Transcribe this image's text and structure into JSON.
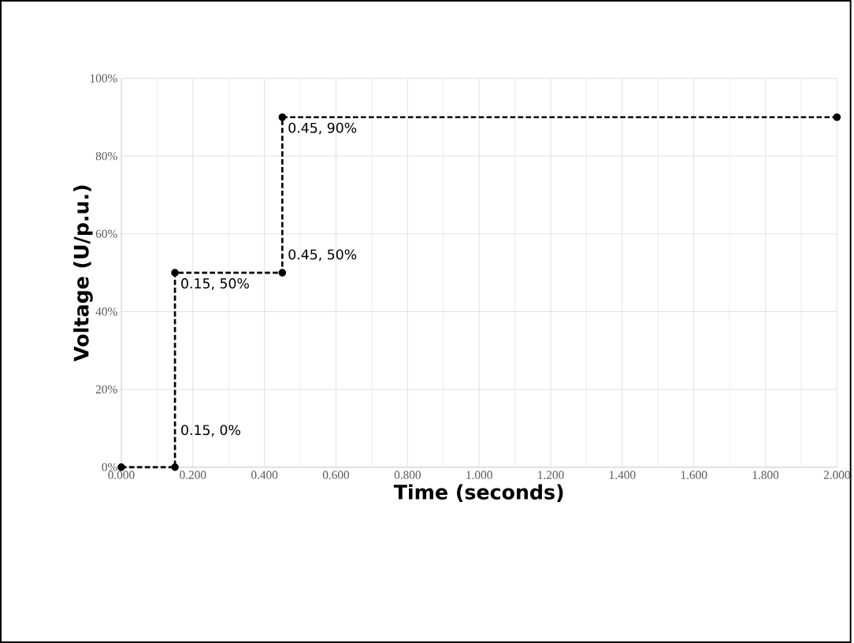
{
  "chart_data": {
    "type": "line",
    "xlabel": "Time (seconds)",
    "ylabel": "Voltage (U/p.u.)",
    "x": [
      0,
      0.15,
      0.15,
      0.45,
      0.45,
      2.0
    ],
    "series": [
      {
        "color": "#000000",
        "values": [
          0,
          0,
          50,
          50,
          90,
          90
        ]
      }
    ],
    "xlim": [
      0,
      2.0
    ],
    "ylim": [
      0,
      100
    ],
    "xticks": [
      {
        "value": 0,
        "label": "0.000"
      },
      {
        "value": 0.2,
        "label": "0.200"
      },
      {
        "value": 0.4,
        "label": "0.400"
      },
      {
        "value": 0.6,
        "label": "0.600"
      },
      {
        "value": 0.8,
        "label": "0.800"
      },
      {
        "value": 1.0,
        "label": "1.000"
      },
      {
        "value": 1.2,
        "label": "1.200"
      },
      {
        "value": 1.4,
        "label": "1.400"
      },
      {
        "value": 1.6,
        "label": "1.600"
      },
      {
        "value": 1.8,
        "label": "1.800"
      },
      {
        "value": 2.0,
        "label": "2.000"
      }
    ],
    "yticks": [
      {
        "value": 0,
        "label": "0%"
      },
      {
        "value": 20,
        "label": "20%"
      },
      {
        "value": 40,
        "label": "40%"
      },
      {
        "value": 60,
        "label": "60%"
      },
      {
        "value": 80,
        "label": "80%"
      },
      {
        "value": 100,
        "label": "100%"
      }
    ],
    "annotations": [
      {
        "text": "0.15, 0%",
        "x": 0.15,
        "y": 0
      },
      {
        "text": "0.15, 50%",
        "x": 0.15,
        "y": 50
      },
      {
        "text": "0.45, 50%",
        "x": 0.45,
        "y": 50
      },
      {
        "text": "0.45, 90%",
        "x": 0.45,
        "y": 90
      }
    ],
    "grid": true,
    "marker": "circle",
    "line_style": "dashed"
  }
}
